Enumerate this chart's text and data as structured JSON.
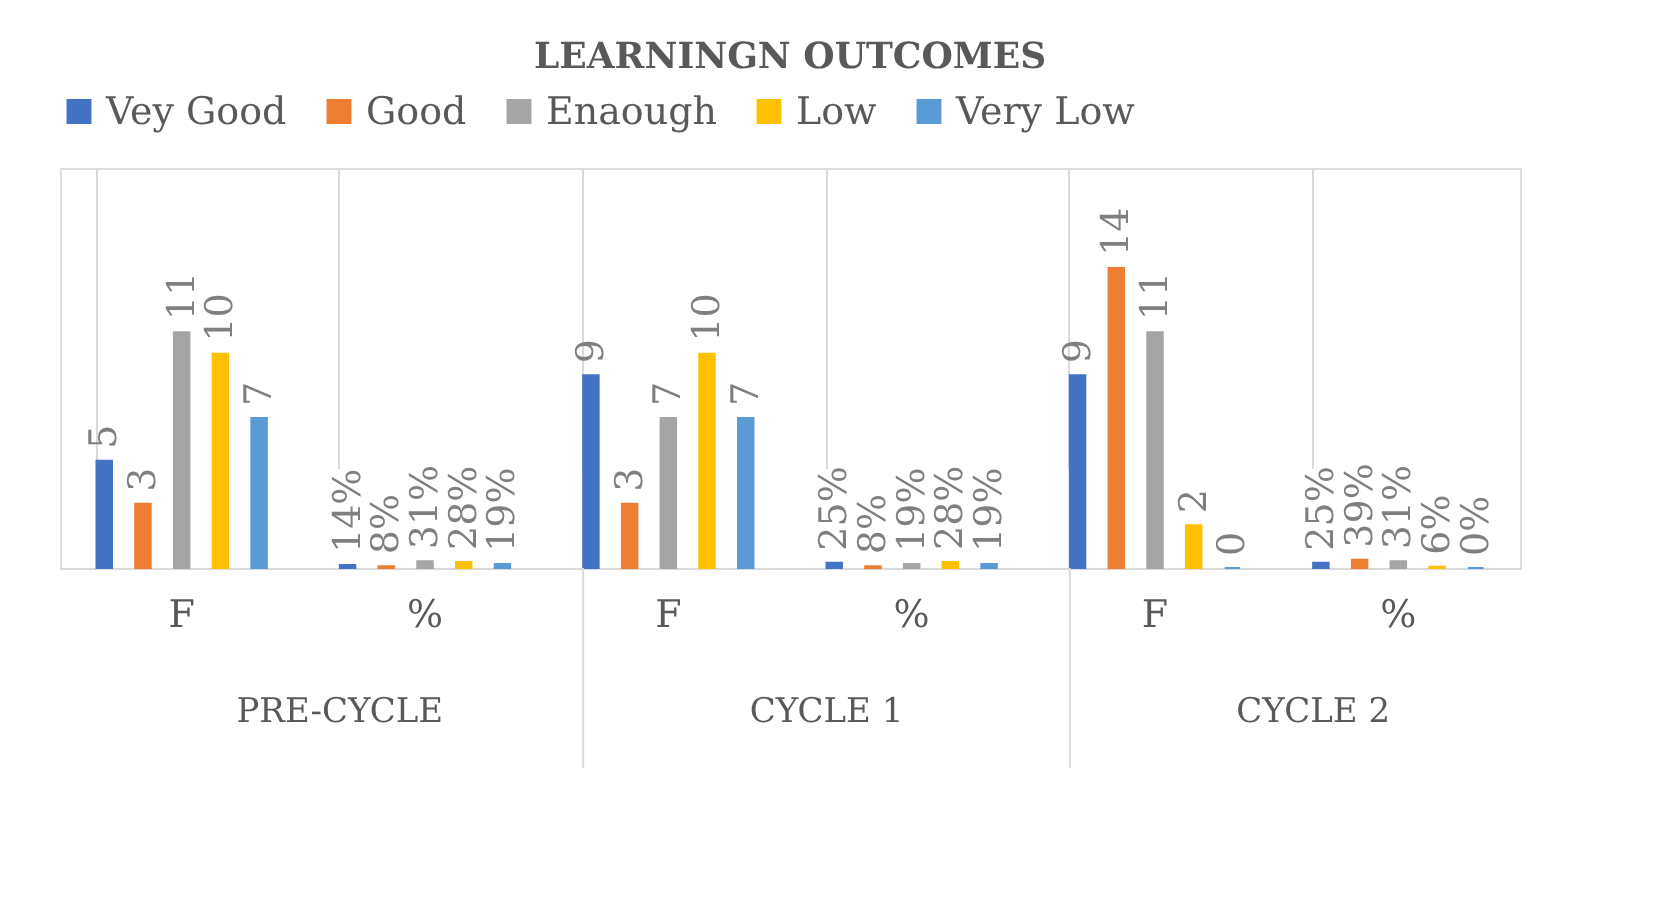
{
  "chart_data": {
    "type": "bar",
    "title": "LEARNINGN OUTCOMES",
    "categories": [
      "F",
      "%",
      "F",
      "%",
      "F",
      "%"
    ],
    "series": [
      {
        "name": "Vey Good",
        "color": "#4472c4",
        "values": [
          5,
          0.14,
          9,
          0.25,
          9,
          0.25
        ],
        "value_labels": [
          "5",
          "14%",
          "9",
          "25%",
          "9",
          "25%"
        ]
      },
      {
        "name": "Good",
        "color": "#ed7d31",
        "values": [
          3,
          0.08,
          3,
          0.08,
          14,
          0.39
        ],
        "value_labels": [
          "3",
          "8%",
          "3",
          "8%",
          "14",
          "39%"
        ]
      },
      {
        "name": "Enaough",
        "color": "#a5a5a5",
        "values": [
          11,
          0.31,
          7,
          0.19,
          11,
          0.31
        ],
        "value_labels": [
          "11",
          "31%",
          "7",
          "19%",
          "11",
          "31%"
        ]
      },
      {
        "name": "Low",
        "color": "#ffc000",
        "values": [
          10,
          0.28,
          10,
          0.28,
          2,
          0.06
        ],
        "value_labels": [
          "10",
          "28%",
          "10",
          "28%",
          "2",
          "6%"
        ]
      },
      {
        "name": "Very Low",
        "color": "#5b9bd5",
        "values": [
          7,
          0.19,
          7,
          0.19,
          0,
          0
        ],
        "value_labels": [
          "7",
          "19%",
          "7",
          "19%",
          "0",
          "0%"
        ]
      }
    ],
    "annotations": [
      "PRE-CYCLE",
      "CYCLE 1",
      "CYCLE 2"
    ],
    "legend": "top",
    "grid": "x",
    "tick_labels": "x"
  }
}
